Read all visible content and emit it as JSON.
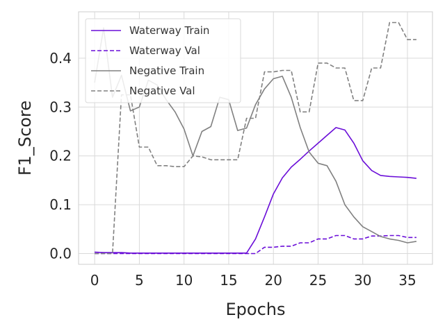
{
  "chart_data": {
    "type": "line",
    "xlabel": "Epochs",
    "ylabel": "F1_Score",
    "xlim": [
      -1.8,
      37.8
    ],
    "ylim": [
      -0.022,
      0.495
    ],
    "xticks": [
      0,
      5,
      10,
      15,
      20,
      25,
      30,
      35
    ],
    "yticks": [
      0.0,
      0.1,
      0.2,
      0.3,
      0.4
    ],
    "ytick_labels": [
      "0.0",
      "0.1",
      "0.2",
      "0.3",
      "0.4"
    ],
    "grid": true,
    "legend_position": "top-left",
    "series": [
      {
        "name": "Waterway Train",
        "color": "#6a0dd8",
        "dash": "solid",
        "x": [
          0,
          1,
          2,
          3,
          4,
          5,
          6,
          7,
          8,
          9,
          10,
          11,
          12,
          13,
          14,
          15,
          16,
          17,
          18,
          19,
          20,
          21,
          22,
          23,
          24,
          25,
          26,
          27,
          28,
          29,
          30,
          31,
          32,
          33,
          34,
          35,
          36
        ],
        "y": [
          0.003,
          0.002,
          0.002,
          0.002,
          0.001,
          0.001,
          0.001,
          0.001,
          0.001,
          0.001,
          0.001,
          0.001,
          0.001,
          0.001,
          0.001,
          0.001,
          0.001,
          0.001,
          0.03,
          0.075,
          0.122,
          0.155,
          0.177,
          0.193,
          0.21,
          0.226,
          0.242,
          0.258,
          0.253,
          0.226,
          0.19,
          0.17,
          0.16,
          0.158,
          0.157,
          0.156,
          0.154
        ]
      },
      {
        "name": "Waterway Val",
        "color": "#6a0dd8",
        "dash": "dashed",
        "x": [
          0,
          1,
          2,
          3,
          4,
          5,
          6,
          7,
          8,
          9,
          10,
          11,
          12,
          13,
          14,
          15,
          16,
          17,
          18,
          19,
          20,
          21,
          22,
          23,
          24,
          25,
          26,
          27,
          28,
          29,
          30,
          31,
          32,
          33,
          34,
          35,
          36
        ],
        "y": [
          0.0,
          0.0,
          0.0,
          0.0,
          0.0,
          0.0,
          0.0,
          0.0,
          0.0,
          0.0,
          0.0,
          0.0,
          0.0,
          0.0,
          0.0,
          0.0,
          0.0,
          0.0,
          0.0,
          0.013,
          0.013,
          0.015,
          0.015,
          0.022,
          0.022,
          0.03,
          0.03,
          0.037,
          0.037,
          0.03,
          0.03,
          0.036,
          0.036,
          0.037,
          0.037,
          0.033,
          0.033
        ]
      },
      {
        "name": "Negative Train",
        "color": "#808080",
        "dash": "solid",
        "x": [
          0,
          1,
          2,
          3,
          4,
          5,
          6,
          7,
          8,
          9,
          10,
          11,
          12,
          13,
          14,
          15,
          16,
          17,
          18,
          19,
          20,
          21,
          22,
          23,
          24,
          25,
          26,
          27,
          28,
          29,
          30,
          31,
          32,
          33,
          34,
          35,
          36
        ],
        "y": [
          0.35,
          0.462,
          0.32,
          0.365,
          0.292,
          0.3,
          0.355,
          0.345,
          0.315,
          0.29,
          0.255,
          0.2,
          0.25,
          0.26,
          0.32,
          0.315,
          0.252,
          0.257,
          0.305,
          0.337,
          0.358,
          0.363,
          0.32,
          0.258,
          0.208,
          0.185,
          0.18,
          0.148,
          0.1,
          0.075,
          0.055,
          0.045,
          0.035,
          0.03,
          0.027,
          0.022,
          0.025
        ]
      },
      {
        "name": "Negative Val",
        "color": "#808080",
        "dash": "dashed",
        "x": [
          0,
          1,
          2,
          3,
          4,
          5,
          6,
          7,
          8,
          9,
          10,
          11,
          12,
          13,
          14,
          15,
          16,
          17,
          18,
          19,
          20,
          21,
          22,
          23,
          24,
          25,
          26,
          27,
          28,
          29,
          30,
          31,
          32,
          33,
          34,
          35,
          36
        ],
        "y": [
          0.0,
          0.0,
          0.0,
          0.325,
          0.325,
          0.218,
          0.218,
          0.18,
          0.18,
          0.178,
          0.178,
          0.2,
          0.198,
          0.192,
          0.192,
          0.192,
          0.192,
          0.277,
          0.277,
          0.372,
          0.372,
          0.375,
          0.375,
          0.29,
          0.29,
          0.39,
          0.39,
          0.38,
          0.38,
          0.313,
          0.313,
          0.38,
          0.38,
          0.473,
          0.473,
          0.438,
          0.438
        ]
      }
    ]
  }
}
